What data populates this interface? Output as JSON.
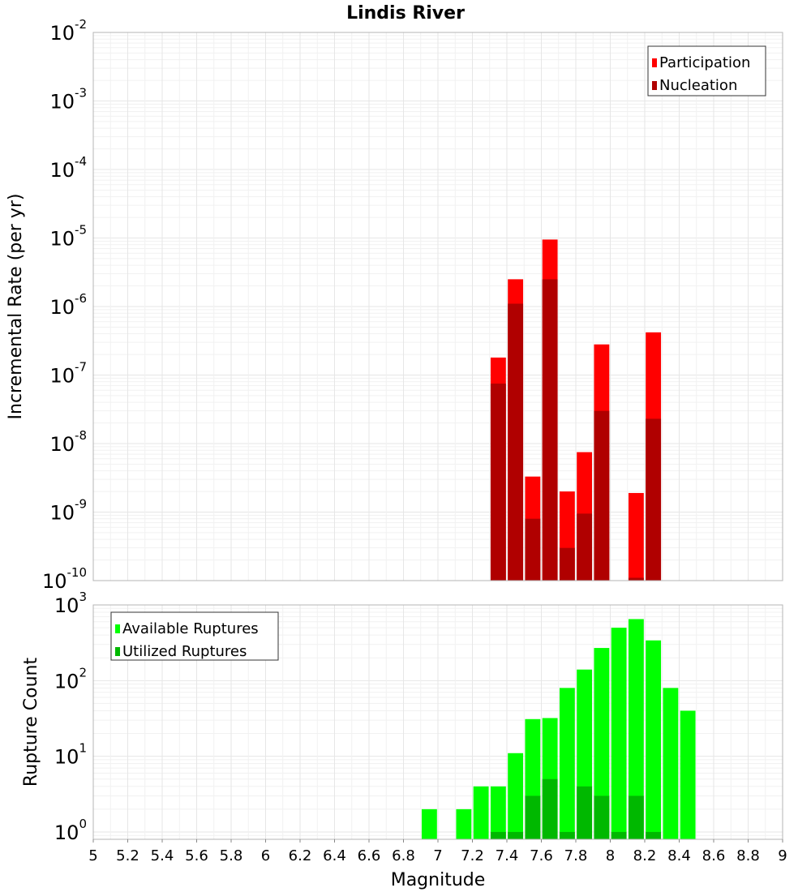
{
  "title": "Lindis River",
  "xlabel": "Magnitude",
  "colors": {
    "participation": "#ff0000",
    "nucleation": "#b00000",
    "available": "#00ff00",
    "utilized": "#00b800",
    "grid": "#e6e6e6",
    "frame": "#b4b4b4"
  },
  "chart_data": [
    {
      "type": "bar",
      "title": "Lindis River",
      "xlabel": "",
      "ylabel": "Incremental Rate (per yr)",
      "yscale": "log",
      "xlim": [
        5,
        9
      ],
      "ylim": [
        1e-10,
        0.01
      ],
      "y_tick_exponents": [
        -10,
        -9,
        -8,
        -7,
        -6,
        -5,
        -4,
        -3,
        -2
      ],
      "legend_position": "top-right",
      "grid": true,
      "bin_width": 0.1,
      "series": [
        {
          "name": "Participation",
          "x": [
            7.35,
            7.45,
            7.55,
            7.65,
            7.75,
            7.85,
            7.95,
            8.15,
            8.25
          ],
          "values": [
            1.8e-07,
            2.5e-06,
            3.3e-09,
            9.5e-06,
            2e-09,
            7.5e-09,
            2.8e-07,
            1.9e-09,
            4.2e-07
          ]
        },
        {
          "name": "Nucleation",
          "x": [
            7.35,
            7.45,
            7.55,
            7.65,
            7.75,
            7.85,
            7.95,
            8.15,
            8.25
          ],
          "values": [
            7.5e-08,
            1.1e-06,
            8e-10,
            2.5e-06,
            3e-10,
            9.5e-10,
            3e-08,
            1.1e-10,
            2.3e-08
          ]
        }
      ]
    },
    {
      "type": "bar",
      "xlabel": "Magnitude",
      "ylabel": "Rupture Count",
      "yscale": "log",
      "xlim": [
        5,
        9
      ],
      "ylim": [
        0.8,
        1000
      ],
      "y_tick_exponents": [
        0,
        1,
        2,
        3
      ],
      "x_ticks": [
        "5",
        "5.2",
        "5.4",
        "5.6",
        "5.8",
        "6",
        "6.2",
        "6.4",
        "6.6",
        "6.8",
        "7",
        "7.2",
        "7.4",
        "7.6",
        "7.8",
        "8",
        "8.2",
        "8.4",
        "8.6",
        "8.8",
        "9"
      ],
      "legend_position": "top-left",
      "grid": true,
      "bin_width": 0.1,
      "series": [
        {
          "name": "Available Ruptures",
          "x": [
            6.95,
            7.15,
            7.25,
            7.35,
            7.45,
            7.55,
            7.65,
            7.75,
            7.85,
            7.95,
            8.05,
            8.15,
            8.25,
            8.35,
            8.45
          ],
          "values": [
            2,
            2,
            4,
            4,
            11,
            31,
            32,
            80,
            140,
            270,
            500,
            650,
            340,
            80,
            40
          ]
        },
        {
          "name": "Utilized Ruptures",
          "x": [
            7.35,
            7.45,
            7.55,
            7.65,
            7.75,
            7.85,
            7.95,
            8.05,
            8.15,
            8.25
          ],
          "values": [
            1,
            1,
            3,
            5,
            1,
            4,
            3,
            1,
            3,
            1
          ]
        }
      ]
    }
  ]
}
